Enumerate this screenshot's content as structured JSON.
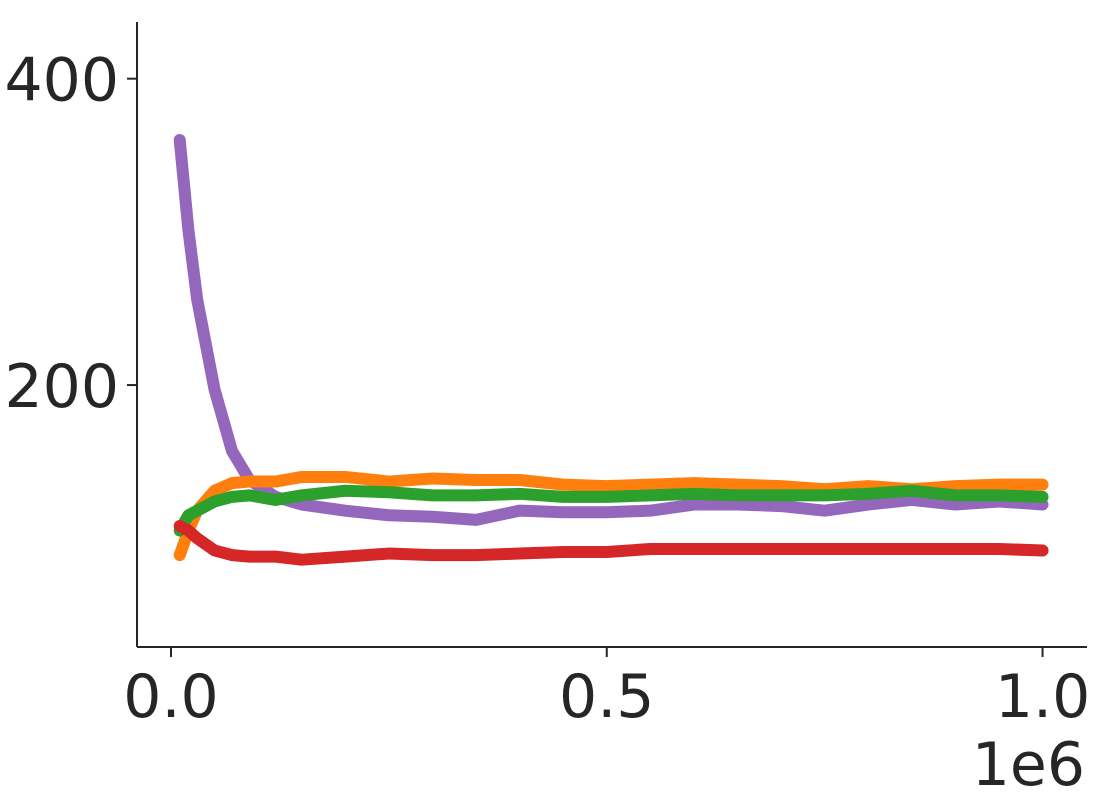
{
  "chart_data": {
    "type": "line",
    "x": [
      0.01,
      0.02,
      0.03,
      0.05,
      0.07,
      0.09,
      0.12,
      0.15,
      0.2,
      0.25,
      0.3,
      0.35,
      0.4,
      0.45,
      0.5,
      0.55,
      0.6,
      0.65,
      0.7,
      0.75,
      0.8,
      0.85,
      0.9,
      0.95,
      1.0
    ],
    "series": [
      {
        "color": "#9467bd",
        "values": [
          360,
          301,
          256,
          197,
          157,
          138,
          127,
          122,
          118,
          115,
          114,
          112,
          118,
          117,
          117,
          118,
          122,
          122,
          121,
          118,
          122,
          125,
          122,
          124,
          122
        ]
      },
      {
        "color": "#ff7f0e",
        "values": [
          89,
          105,
          118,
          131,
          136,
          137,
          137,
          140,
          140,
          137,
          139,
          138,
          138,
          135,
          134,
          135,
          136,
          135,
          134,
          132,
          134,
          132,
          134,
          135,
          135
        ]
      },
      {
        "color": "#2ca02c",
        "values": [
          105,
          115,
          118,
          124,
          127,
          128,
          125,
          128,
          131,
          130,
          128,
          128,
          129,
          127,
          127,
          128,
          129,
          128,
          128,
          128,
          129,
          131,
          128,
          128,
          127
        ]
      },
      {
        "color": "#d62728",
        "values": [
          108,
          105,
          100,
          92,
          89,
          88,
          88,
          86,
          88,
          90,
          89,
          89,
          90,
          91,
          91,
          93,
          93,
          93,
          93,
          93,
          93,
          93,
          93,
          93,
          92
        ]
      }
    ],
    "xlim": [
      -0.039,
      1.051
    ],
    "xticks": [
      {
        "value": 0,
        "label": "0.0"
      },
      {
        "value": 0.5,
        "label": "0.5"
      },
      {
        "value": 1,
        "label": "1.0"
      }
    ],
    "x_offset_label": "1e6",
    "ylim": [
      29,
      437
    ],
    "yticks": [
      200,
      400
    ]
  }
}
